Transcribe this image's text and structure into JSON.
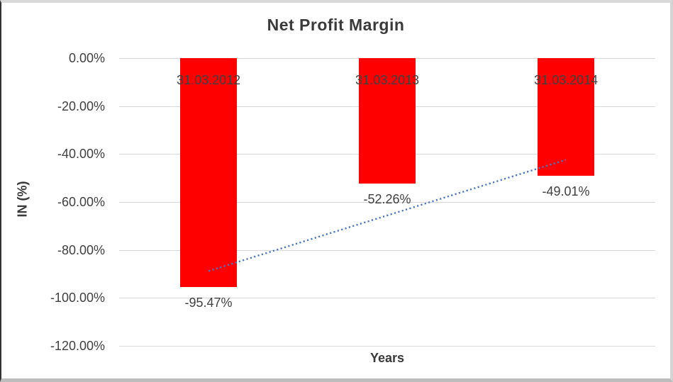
{
  "chart_data": {
    "type": "bar",
    "title": "Net Profit Margin",
    "xlabel": "Years",
    "ylabel": "IN (%)",
    "categories": [
      "31.03.2012",
      "31.03.2013",
      "31.03.2014"
    ],
    "values": [
      -95.47,
      -52.26,
      -49.01
    ],
    "data_labels": [
      "-95.47%",
      "-52.26%",
      "-49.01%"
    ],
    "y_ticks": [
      "0.00%",
      "-20.00%",
      "-40.00%",
      "-60.00%",
      "-80.00%",
      "-100.00%",
      "-120.00%"
    ],
    "ylim": [
      -120,
      0
    ],
    "grid": true,
    "legend": false,
    "bar_color": "#FF0000",
    "label_color": "#404040",
    "gridline_color": "#D9D9D9",
    "trendline": {
      "type": "linear",
      "style": "dotted",
      "color": "#4777C0",
      "y_start_pct": -88.8,
      "y_end_pct": -42.4
    }
  }
}
